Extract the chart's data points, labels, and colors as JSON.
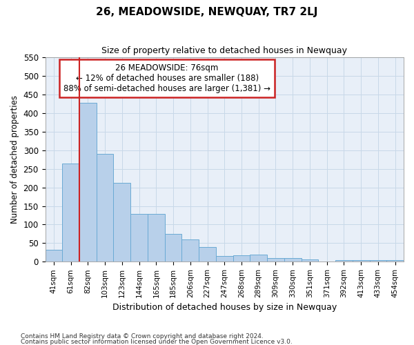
{
  "title": "26, MEADOWSIDE, NEWQUAY, TR7 2LJ",
  "subtitle": "Size of property relative to detached houses in Newquay",
  "xlabel": "Distribution of detached houses by size in Newquay",
  "ylabel": "Number of detached properties",
  "footnote1": "Contains HM Land Registry data © Crown copyright and database right 2024.",
  "footnote2": "Contains public sector information licensed under the Open Government Licence v3.0.",
  "categories": [
    "41sqm",
    "61sqm",
    "82sqm",
    "103sqm",
    "123sqm",
    "144sqm",
    "165sqm",
    "185sqm",
    "206sqm",
    "227sqm",
    "247sqm",
    "268sqm",
    "289sqm",
    "309sqm",
    "330sqm",
    "351sqm",
    "371sqm",
    "392sqm",
    "413sqm",
    "433sqm",
    "454sqm"
  ],
  "values": [
    32,
    265,
    427,
    290,
    212,
    128,
    128,
    75,
    60,
    40,
    15,
    18,
    20,
    10,
    9,
    7,
    0,
    5,
    5,
    5,
    5
  ],
  "bar_color": "#b8d0ea",
  "bar_edge_color": "#6aaad4",
  "grid_color": "#c8d8e8",
  "background_color": "#e8eff8",
  "vline_x_index": 1,
  "vline_color": "#cc2222",
  "annotation_line1": "26 MEADOWSIDE: 76sqm",
  "annotation_line2": "← 12% of detached houses are smaller (188)",
  "annotation_line3": "88% of semi-detached houses are larger (1,381) →",
  "annotation_box_color": "#ffffff",
  "annotation_box_edge": "#cc2222",
  "ylim": [
    0,
    550
  ],
  "yticks": [
    0,
    50,
    100,
    150,
    200,
    250,
    300,
    350,
    400,
    450,
    500,
    550
  ]
}
